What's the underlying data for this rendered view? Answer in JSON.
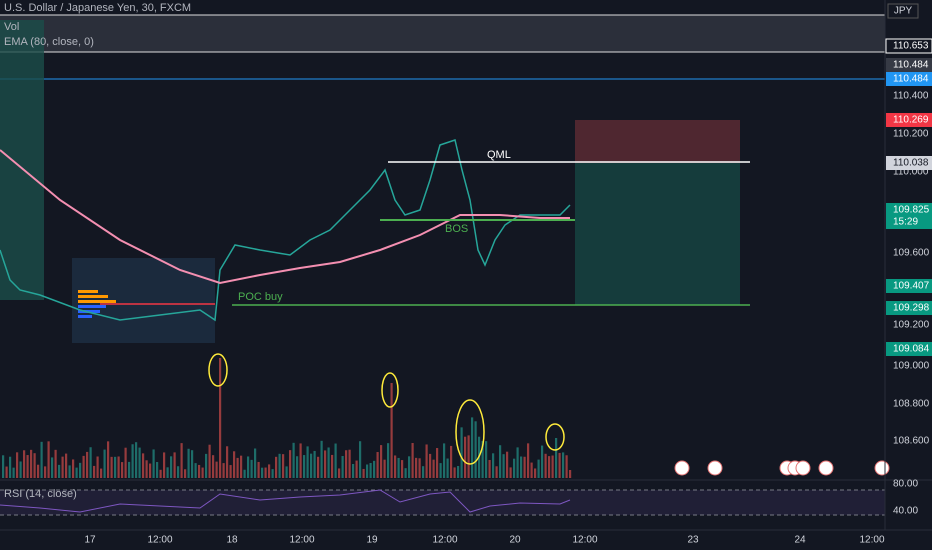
{
  "header": {
    "symbol": "U.S. Dollar / Japanese Yen, 30, FXCM",
    "vol": "Vol",
    "ema": "EMA (80, close, 0)",
    "currency": "JPY"
  },
  "price_axis": [
    "110.653",
    "110.484",
    "110.484",
    "110.400",
    "110.269",
    "110.200",
    "110.038",
    "110.000",
    "109.825",
    "15:29",
    "109.600",
    "109.407",
    "109.298",
    "109.200",
    "109.084",
    "109.000",
    "108.800",
    "108.600"
  ],
  "annotations": {
    "qml": "QML",
    "bos": "BOS",
    "poc": "POC buy"
  },
  "rsi": {
    "label": "RSI (14, close)",
    "axis": [
      "80.00",
      "40.00"
    ]
  },
  "time_axis": [
    "17",
    "12:00",
    "18",
    "12:00",
    "19",
    "12:00",
    "20",
    "12:00",
    "23",
    "24",
    "12:00"
  ]
}
